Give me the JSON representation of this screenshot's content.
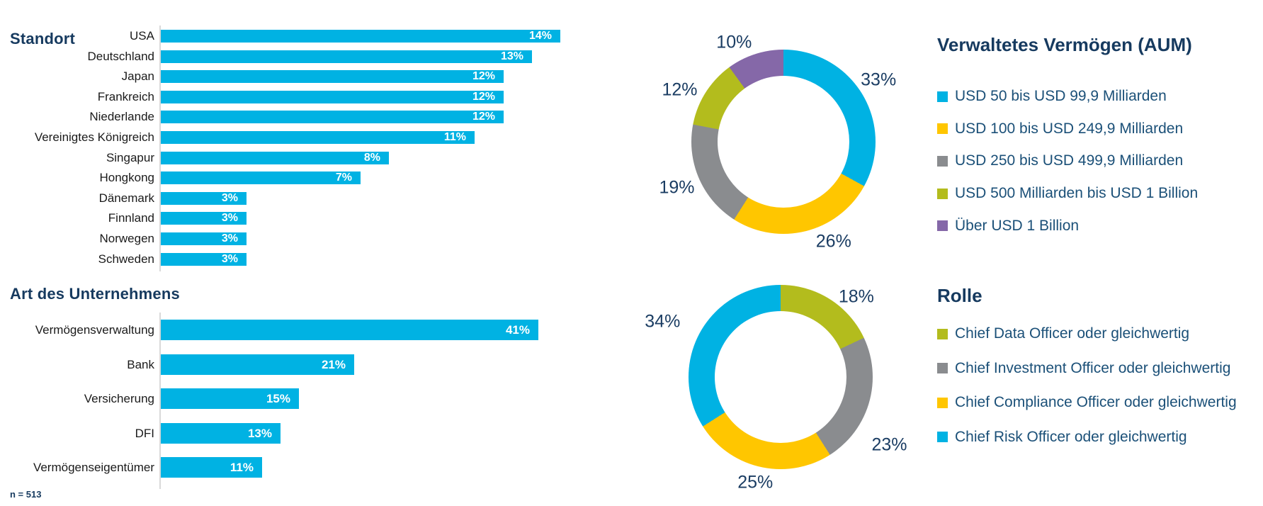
{
  "page": {
    "n_label": "n = 513"
  },
  "colors": {
    "cyan": "#00B2E3",
    "yellow": "#FFC600",
    "gray": "#8A8C8F",
    "green": "#B3BC1D",
    "purple": "#8568A8",
    "navy_title": "#163A5F",
    "navy_label": "#1B3D63",
    "navy_legend": "#1B5078",
    "axis": "#D9D9D9",
    "category_text": "#1A1A1A",
    "bar_value_text": "#FFFFFF"
  },
  "chart_data": [
    {
      "type": "bar",
      "orientation": "horizontal",
      "title": "Standort",
      "unit": "%",
      "bar_color": "cyan",
      "grid": false,
      "xlim": [
        0,
        14.5
      ],
      "categories": [
        "USA",
        "Deutschland",
        "Japan",
        "Frankreich",
        "Niederlande",
        "Vereinigtes Königreich",
        "Singapur",
        "Hongkong",
        "Dänemark",
        "Finnland",
        "Norwegen",
        "Schweden"
      ],
      "values": [
        14,
        13,
        12,
        12,
        12,
        11,
        8,
        7,
        3,
        3,
        3,
        3
      ],
      "value_labels": [
        "14%",
        "13%",
        "12%",
        "12%",
        "12%",
        "11%",
        "8%",
        "7%",
        "3%",
        "3%",
        "3%",
        "3%"
      ]
    },
    {
      "type": "bar",
      "orientation": "horizontal",
      "title": "Art des Unternehmens",
      "unit": "%",
      "bar_color": "cyan",
      "grid": false,
      "xlim": [
        0,
        42
      ],
      "categories": [
        "Vermögensverwaltung",
        "Bank",
        "Versicherung",
        "DFI",
        "Vermögenseigentümer"
      ],
      "values": [
        41,
        21,
        15,
        13,
        11
      ],
      "value_labels": [
        "41%",
        "21%",
        "15%",
        "13%",
        "11%"
      ]
    },
    {
      "type": "pie",
      "subtype": "donut",
      "title": "Verwaltetes Vermögen (AUM)",
      "unit": "%",
      "start_angle_deg": 0,
      "direction": "clockwise",
      "legend_position": "right",
      "slices": [
        {
          "label": "USD 50 bis USD 99,9 Milliarden",
          "value": 33,
          "color": "cyan"
        },
        {
          "label": "USD 100 bis USD 249,9 Milliarden",
          "value": 26,
          "color": "yellow"
        },
        {
          "label": "USD 250 bis USD 499,9 Milliarden",
          "value": 19,
          "color": "gray"
        },
        {
          "label": "USD 500 Milliarden bis USD 1 Billion",
          "value": 12,
          "color": "green"
        },
        {
          "label": "Über USD 1 Billion",
          "value": 10,
          "color": "purple"
        }
      ]
    },
    {
      "type": "pie",
      "subtype": "donut",
      "title": "Rolle",
      "unit": "%",
      "start_angle_deg": 0,
      "direction": "clockwise",
      "legend_position": "right",
      "slices": [
        {
          "label": "Chief Data Officer oder gleichwertig",
          "value": 18,
          "color": "green"
        },
        {
          "label": "Chief Investment Officer oder gleichwertig",
          "value": 23,
          "color": "gray"
        },
        {
          "label": "Chief Compliance Officer oder gleichwertig",
          "value": 25,
          "color": "yellow"
        },
        {
          "label": "Chief Risk Officer oder gleichwertig",
          "value": 34,
          "color": "cyan"
        }
      ]
    }
  ]
}
